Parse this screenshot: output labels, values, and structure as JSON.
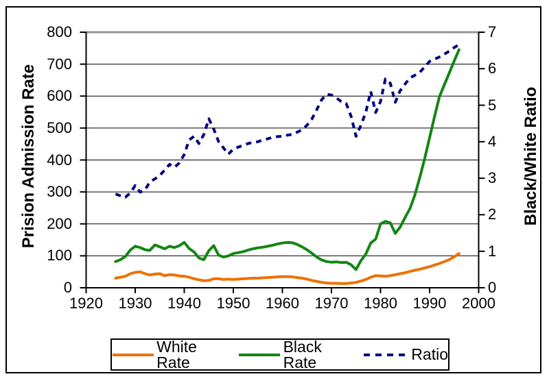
{
  "chart_data": {
    "type": "line",
    "title": "",
    "x_axis": {
      "label": "",
      "min": 1920,
      "max": 2000,
      "tick_step": 10
    },
    "y_left": {
      "label": "Prision Admission Rate",
      "min": 0,
      "max": 800,
      "tick_step": 100
    },
    "y_right": {
      "label": "Black/White Ratio",
      "min": 0,
      "max": 7,
      "tick_step": 1
    },
    "x_start": 1926,
    "x_step": 1,
    "grid": "horizontal",
    "legend_position": "bottom",
    "plot_border_top_color": "#969696",
    "axis_color": "#000000",
    "series": [
      {
        "name": "White Rate",
        "axis": "left",
        "style": "solid",
        "color": "#EE7100",
        "values": [
          30,
          33,
          36,
          44,
          48,
          50,
          44,
          40,
          43,
          44,
          38,
          41,
          40,
          37,
          36,
          33,
          28,
          25,
          22,
          23,
          28,
          28,
          26,
          27,
          26,
          27,
          28,
          29,
          30,
          30,
          31,
          32,
          33,
          34,
          35,
          35,
          34,
          32,
          30,
          27,
          23,
          20,
          17,
          15,
          14,
          14,
          13,
          13,
          15,
          17,
          21,
          26,
          33,
          38,
          37,
          36,
          38,
          41,
          44,
          47,
          51,
          55,
          58,
          62,
          66,
          71,
          76,
          82,
          88,
          97,
          107
        ]
      },
      {
        "name": "Black Rate",
        "axis": "left",
        "style": "solid",
        "color": "#138613",
        "values": [
          82,
          88,
          98,
          118,
          130,
          126,
          119,
          117,
          134,
          128,
          122,
          130,
          126,
          132,
          142,
          123,
          112,
          93,
          88,
          116,
          132,
          102,
          96,
          100,
          107,
          110,
          113,
          118,
          122,
          125,
          127,
          130,
          133,
          137,
          140,
          142,
          141,
          136,
          128,
          119,
          108,
          96,
          87,
          82,
          80,
          81,
          79,
          80,
          72,
          57,
          85,
          105,
          140,
          152,
          200,
          208,
          203,
          170,
          190,
          220,
          248,
          290,
          345,
          405,
          470,
          535,
          598,
          635,
          672,
          710,
          745
        ]
      },
      {
        "name": "Ratio",
        "axis": "right",
        "style": "dashed",
        "color": "#000080",
        "values": [
          2.57,
          2.52,
          2.48,
          2.6,
          2.8,
          2.62,
          2.68,
          2.9,
          2.98,
          3.08,
          3.22,
          3.38,
          3.3,
          3.42,
          3.65,
          4.05,
          4.15,
          3.95,
          4.2,
          4.63,
          4.35,
          4.0,
          3.83,
          3.66,
          3.8,
          3.85,
          3.9,
          3.95,
          3.98,
          4.0,
          4.05,
          4.08,
          4.12,
          4.14,
          4.15,
          4.18,
          4.2,
          4.26,
          4.33,
          4.45,
          4.62,
          4.88,
          5.15,
          5.3,
          5.28,
          5.2,
          5.1,
          5.05,
          4.7,
          4.15,
          4.45,
          4.8,
          5.38,
          4.8,
          5.1,
          5.72,
          5.6,
          5.08,
          5.4,
          5.58,
          5.75,
          5.82,
          5.9,
          6.05,
          6.2,
          6.26,
          6.32,
          6.4,
          6.48,
          6.58,
          6.66
        ]
      }
    ]
  }
}
